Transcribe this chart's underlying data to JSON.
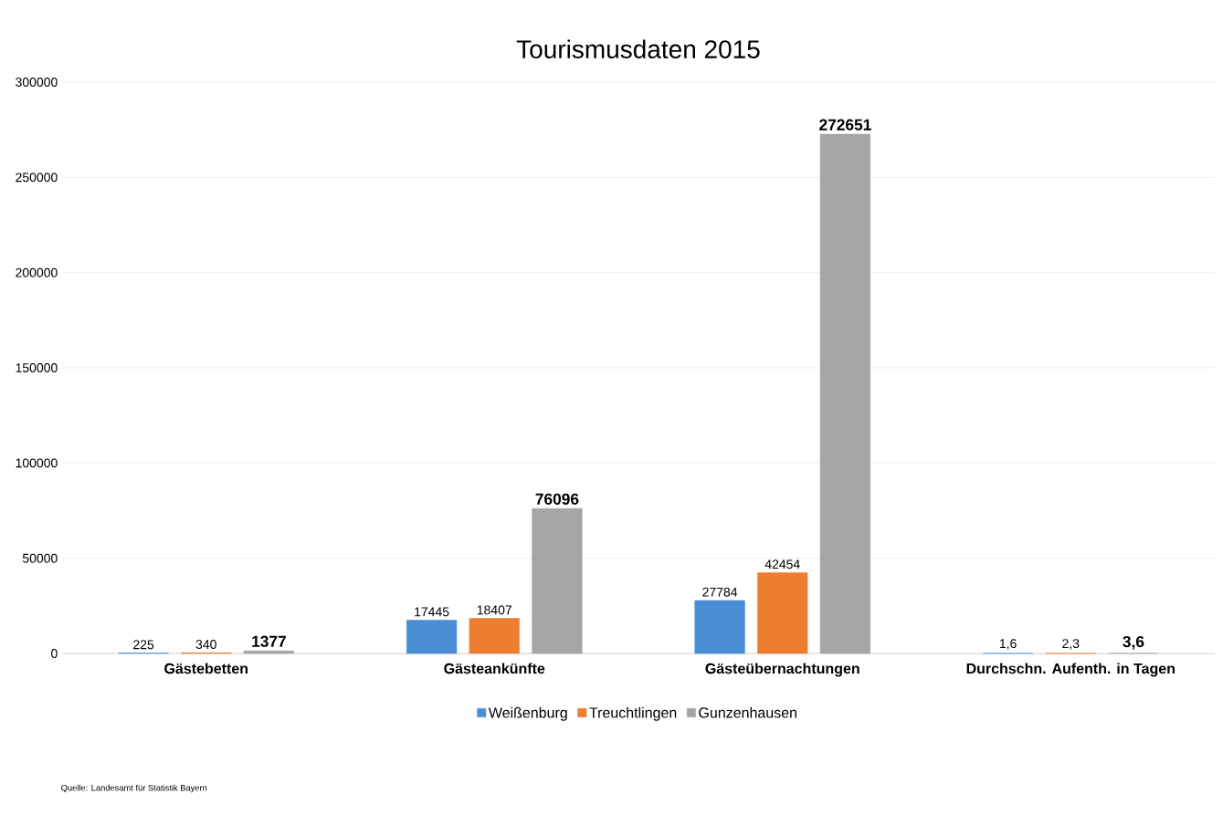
{
  "chart_data": {
    "type": "bar",
    "title": "Tourismusdaten 2015",
    "categories": [
      "Gästebetten",
      "Gästeankünfte",
      "Gästeübernachtungen",
      "Durchschn. Aufenth. in Tagen"
    ],
    "series": [
      {
        "name": "Weißenburg",
        "color": "#4a8fd6",
        "values": [
          225,
          17445,
          27784,
          1.6
        ],
        "value_labels": [
          "225",
          "17445",
          "27784",
          "1,6"
        ]
      },
      {
        "name": "Treuchtlingen",
        "color": "#ed7d31",
        "values": [
          340,
          18407,
          42454,
          2.3
        ],
        "value_labels": [
          "340",
          "18407",
          "42454",
          "2,3"
        ]
      },
      {
        "name": "Gunzenhausen",
        "color": "#a5a5a5",
        "values": [
          1377,
          76096,
          272651,
          3.6
        ],
        "value_labels": [
          "1377",
          "76096",
          "272651",
          "3,6"
        ]
      }
    ],
    "ylim": [
      0,
      300000
    ],
    "yticks": [
      0,
      50000,
      100000,
      150000,
      200000,
      250000,
      300000
    ],
    "grid": "y",
    "legend": "bottom",
    "annotations": [
      "Quelle: Landesamt für Statistik Bayern"
    ]
  }
}
